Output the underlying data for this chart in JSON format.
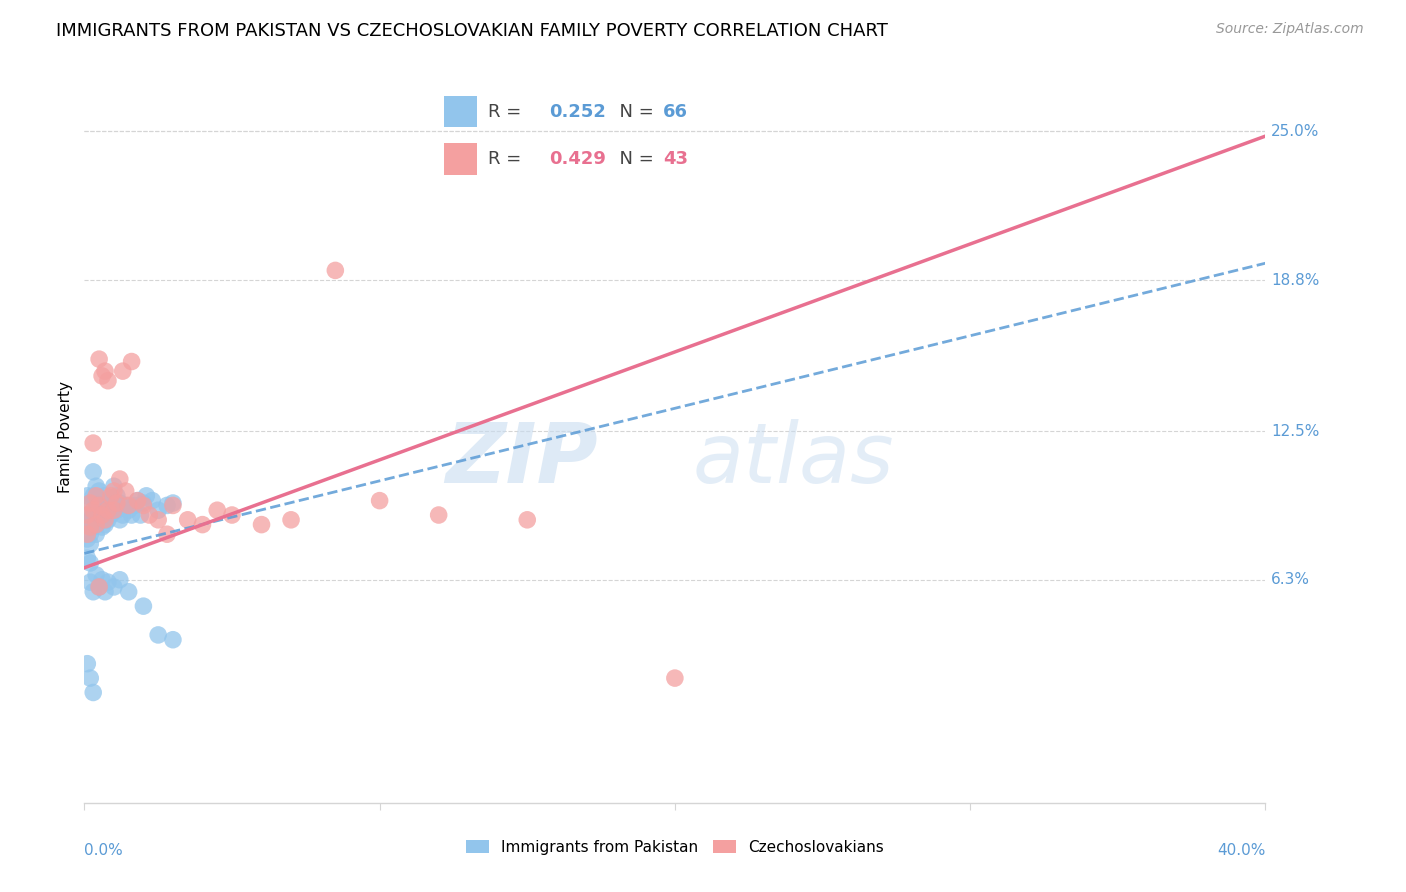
{
  "title": "IMMIGRANTS FROM PAKISTAN VS CZECHOSLOVAKIAN FAMILY POVERTY CORRELATION CHART",
  "source": "Source: ZipAtlas.com",
  "ylabel": "Family Poverty",
  "ytick_values": [
    0.063,
    0.125,
    0.188,
    0.25
  ],
  "ytick_labels": [
    "6.3%",
    "12.5%",
    "18.8%",
    "25.0%"
  ],
  "xmin": 0.0,
  "xmax": 0.4,
  "ymin": -0.03,
  "ymax": 0.275,
  "blue_color": "#92C5EC",
  "pink_color": "#F4A0A0",
  "blue_line_color": "#5B9BD5",
  "pink_line_color": "#E87090",
  "blue_line_y0": 0.074,
  "blue_line_y1": 0.195,
  "pink_line_y0": 0.068,
  "pink_line_y1": 0.248,
  "watermark_zip_color": "#C8DCF0",
  "watermark_atlas_color": "#B8D0EE",
  "grid_color": "#d5d5d5",
  "title_fontsize": 13,
  "source_fontsize": 10,
  "axis_label_color": "#5B9BD5",
  "legend_r1_val": "0.252",
  "legend_r1_n": "66",
  "legend_r2_val": "0.429",
  "legend_r2_n": "43",
  "blue_x": [
    0.001,
    0.001,
    0.001,
    0.001,
    0.001,
    0.002,
    0.002,
    0.002,
    0.002,
    0.002,
    0.003,
    0.003,
    0.003,
    0.003,
    0.004,
    0.004,
    0.004,
    0.004,
    0.005,
    0.005,
    0.005,
    0.006,
    0.006,
    0.006,
    0.007,
    0.007,
    0.007,
    0.008,
    0.008,
    0.009,
    0.009,
    0.01,
    0.01,
    0.011,
    0.011,
    0.012,
    0.012,
    0.013,
    0.014,
    0.015,
    0.016,
    0.017,
    0.018,
    0.019,
    0.02,
    0.021,
    0.023,
    0.025,
    0.028,
    0.03,
    0.002,
    0.003,
    0.004,
    0.005,
    0.006,
    0.007,
    0.008,
    0.01,
    0.012,
    0.015,
    0.02,
    0.001,
    0.002,
    0.003,
    0.025,
    0.03
  ],
  "blue_y": [
    0.098,
    0.09,
    0.086,
    0.08,
    0.072,
    0.095,
    0.088,
    0.082,
    0.078,
    0.07,
    0.108,
    0.098,
    0.09,
    0.085,
    0.102,
    0.095,
    0.088,
    0.082,
    0.1,
    0.094,
    0.087,
    0.096,
    0.09,
    0.085,
    0.098,
    0.092,
    0.086,
    0.094,
    0.088,
    0.096,
    0.09,
    0.102,
    0.095,
    0.098,
    0.092,
    0.095,
    0.088,
    0.09,
    0.094,
    0.092,
    0.09,
    0.094,
    0.096,
    0.09,
    0.095,
    0.098,
    0.096,
    0.092,
    0.094,
    0.095,
    0.062,
    0.058,
    0.065,
    0.06,
    0.063,
    0.058,
    0.062,
    0.06,
    0.063,
    0.058,
    0.052,
    0.028,
    0.022,
    0.016,
    0.04,
    0.038
  ],
  "pink_x": [
    0.001,
    0.001,
    0.002,
    0.002,
    0.003,
    0.003,
    0.004,
    0.004,
    0.005,
    0.005,
    0.006,
    0.006,
    0.007,
    0.007,
    0.008,
    0.008,
    0.009,
    0.01,
    0.01,
    0.011,
    0.012,
    0.013,
    0.014,
    0.015,
    0.016,
    0.018,
    0.02,
    0.022,
    0.025,
    0.028,
    0.03,
    0.035,
    0.04,
    0.045,
    0.05,
    0.06,
    0.07,
    0.085,
    0.1,
    0.12,
    0.15,
    0.2,
    0.005
  ],
  "pink_y": [
    0.09,
    0.082,
    0.095,
    0.085,
    0.092,
    0.12,
    0.098,
    0.086,
    0.094,
    0.155,
    0.09,
    0.148,
    0.15,
    0.088,
    0.146,
    0.092,
    0.098,
    0.1,
    0.092,
    0.095,
    0.105,
    0.15,
    0.1,
    0.094,
    0.154,
    0.096,
    0.094,
    0.09,
    0.088,
    0.082,
    0.094,
    0.088,
    0.086,
    0.092,
    0.09,
    0.086,
    0.088,
    0.192,
    0.096,
    0.09,
    0.088,
    0.022,
    0.06
  ]
}
